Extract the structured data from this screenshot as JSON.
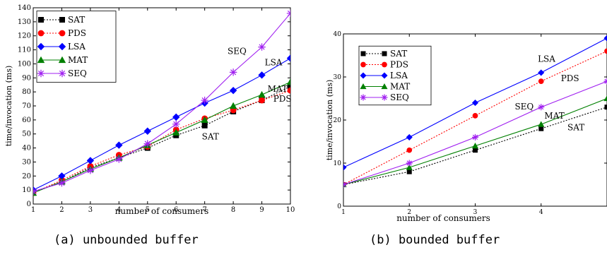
{
  "captions": {
    "left": "(a) unbounded buffer",
    "right": "(b) bounded buffer"
  },
  "chart_data": [
    {
      "type": "line",
      "xlabel": "number of consumers",
      "ylabel": "time/invocation (ms)",
      "xlim": [
        1,
        10
      ],
      "ylim": [
        0,
        140
      ],
      "xticks": [
        1,
        2,
        3,
        4,
        5,
        6,
        7,
        8,
        9,
        10
      ],
      "yticks": [
        0,
        10,
        20,
        30,
        40,
        50,
        60,
        70,
        80,
        90,
        100,
        110,
        120,
        130,
        140
      ],
      "grid": false,
      "legend": "top-left",
      "x": [
        1,
        2,
        3,
        4,
        5,
        6,
        7,
        8,
        9,
        10
      ],
      "series": [
        {
          "name": "SAT",
          "color": "#000000",
          "marker": "square",
          "dash": "dotted",
          "values": [
            8,
            16,
            26,
            33,
            40,
            49,
            56,
            66,
            74,
            84
          ]
        },
        {
          "name": "PDS",
          "color": "#ff0000",
          "marker": "circle",
          "dash": "dotted",
          "values": [
            8,
            17,
            27,
            35,
            41,
            53,
            61,
            67,
            74,
            81
          ]
        },
        {
          "name": "LSA",
          "color": "#0000ff",
          "marker": "diamond",
          "dash": "solid",
          "values": [
            10,
            20,
            31,
            42,
            52,
            62,
            72,
            81,
            92,
            104
          ]
        },
        {
          "name": "MAT",
          "color": "#008000",
          "marker": "triangle",
          "dash": "solid",
          "values": [
            8,
            16,
            25,
            33,
            42,
            51,
            60,
            70,
            78,
            87
          ]
        },
        {
          "name": "SEQ",
          "color": "#a020f0",
          "marker": "star",
          "dash": "solid",
          "values": [
            9,
            15,
            24,
            32,
            43,
            57,
            74,
            94,
            112,
            136
          ]
        }
      ],
      "annotations": [
        {
          "text": "SEQ",
          "x": 7.8,
          "y": 107
        },
        {
          "text": "LSA",
          "x": 9.1,
          "y": 99
        },
        {
          "text": "MAT",
          "x": 9.2,
          "y": 80
        },
        {
          "text": "PDS",
          "x": 9.4,
          "y": 73
        },
        {
          "text": "SAT",
          "x": 6.9,
          "y": 46
        }
      ]
    },
    {
      "type": "line",
      "xlabel": "number of consumers",
      "ylabel": "time/invocation (ms)",
      "xlim": [
        1,
        5
      ],
      "ylim": [
        0,
        40
      ],
      "xticks": [
        1,
        2,
        3,
        4
      ],
      "yticks": [
        0,
        10,
        20,
        30,
        40
      ],
      "grid": false,
      "legend": "top-left",
      "x": [
        1,
        2,
        3,
        4,
        5
      ],
      "series": [
        {
          "name": "SAT",
          "color": "#000000",
          "marker": "square",
          "dash": "dotted",
          "values": [
            5,
            8,
            13,
            18,
            23
          ]
        },
        {
          "name": "PDS",
          "color": "#ff0000",
          "marker": "circle",
          "dash": "dotted",
          "values": [
            5,
            13,
            21,
            29,
            36
          ]
        },
        {
          "name": "LSA",
          "color": "#0000ff",
          "marker": "diamond",
          "dash": "solid",
          "values": [
            9,
            16,
            24,
            31,
            39
          ]
        },
        {
          "name": "MAT",
          "color": "#008000",
          "marker": "triangle",
          "dash": "solid",
          "values": [
            5,
            9,
            14,
            19,
            25
          ]
        },
        {
          "name": "SEQ",
          "color": "#a020f0",
          "marker": "star",
          "dash": "solid",
          "values": [
            5,
            10,
            16,
            23,
            29
          ]
        }
      ],
      "annotations": [
        {
          "text": "LSA",
          "x": 3.95,
          "y": 33.5
        },
        {
          "text": "PDS",
          "x": 4.3,
          "y": 29
        },
        {
          "text": "SEQ",
          "x": 3.6,
          "y": 22.5
        },
        {
          "text": "MAT",
          "x": 4.05,
          "y": 20.3
        },
        {
          "text": "SAT",
          "x": 4.4,
          "y": 17.6
        }
      ]
    }
  ]
}
